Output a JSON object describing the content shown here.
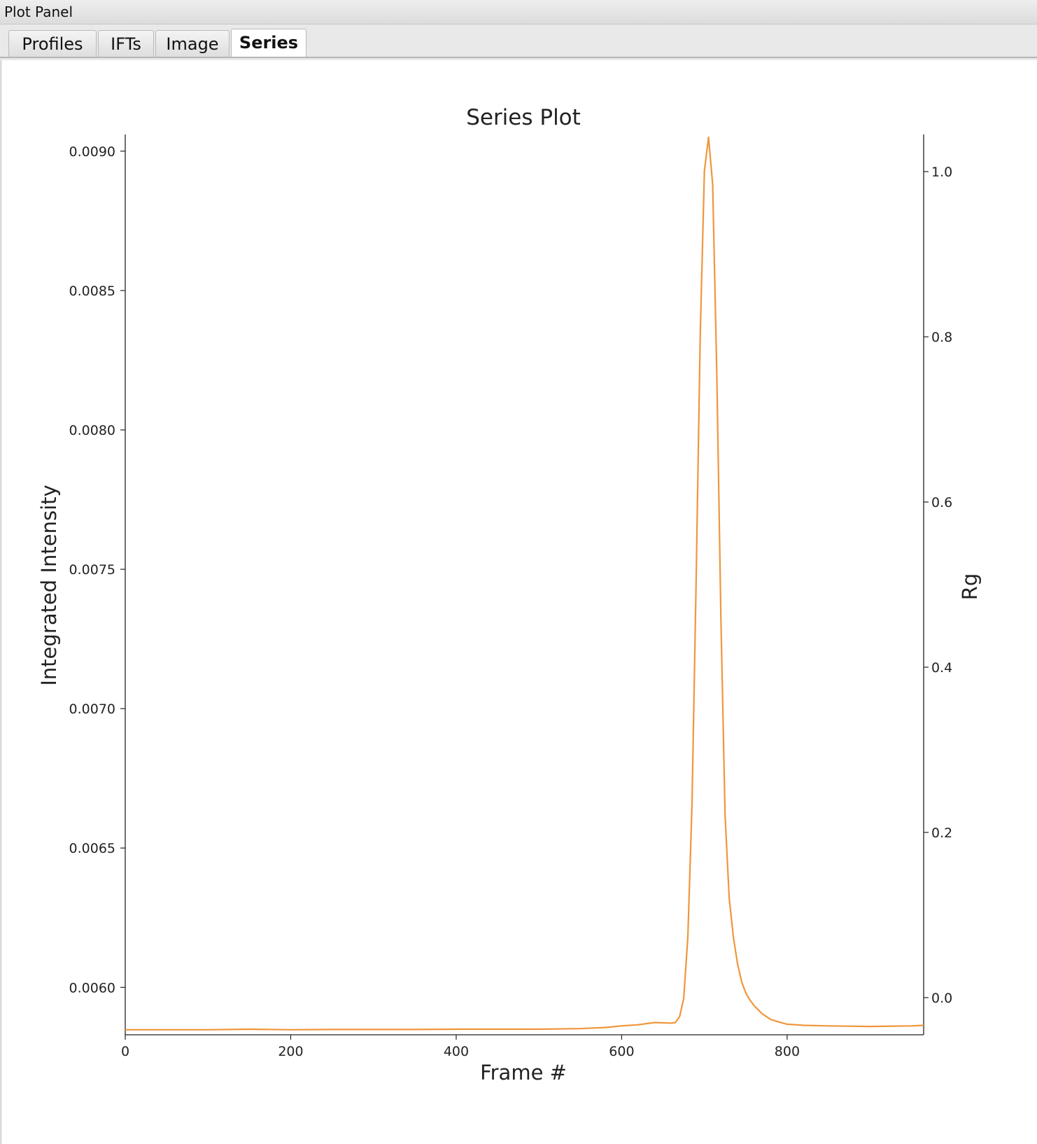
{
  "window": {
    "title": "Plot Panel"
  },
  "tabs": [
    {
      "label": "Profiles",
      "active": false
    },
    {
      "label": "IFTs",
      "active": false
    },
    {
      "label": "Image",
      "active": false
    },
    {
      "label": "Series",
      "active": true
    }
  ],
  "chart_data": {
    "type": "line",
    "title": "Series Plot",
    "xlabel": "Frame #",
    "ylabel": "Integrated Intensity",
    "y2label": "Rg",
    "xlim": [
      0,
      965
    ],
    "ylim": [
      0.00583,
      0.00906
    ],
    "y2lim": [
      -0.045,
      1.045
    ],
    "xticks": [
      "0",
      "200",
      "400",
      "600",
      "800"
    ],
    "yticks": [
      "0.0060",
      "0.0065",
      "0.0070",
      "0.0075",
      "0.0080",
      "0.0085",
      "0.0090"
    ],
    "y2ticks": [
      "0.0",
      "0.2",
      "0.4",
      "0.6",
      "0.8",
      "1.0"
    ],
    "grid": false,
    "line_color": "#f0963c",
    "series": [
      {
        "x": [
          0,
          50,
          100,
          150,
          200,
          250,
          300,
          350,
          400,
          450,
          500,
          550,
          580,
          600,
          620,
          640,
          660,
          665,
          670,
          675,
          680,
          685,
          690,
          695,
          700,
          705,
          710,
          715,
          720,
          725,
          730,
          735,
          740,
          745,
          750,
          755,
          760,
          770,
          780,
          790,
          800,
          820,
          850,
          900,
          950,
          965
        ],
        "y": [
          0.005848,
          0.005848,
          0.005848,
          0.00585,
          0.005848,
          0.005849,
          0.005849,
          0.005849,
          0.00585,
          0.00585,
          0.00585,
          0.005852,
          0.005856,
          0.005862,
          0.005866,
          0.005874,
          0.005872,
          0.005874,
          0.005895,
          0.00596,
          0.00618,
          0.00665,
          0.00745,
          0.00835,
          0.00893,
          0.00905,
          0.00888,
          0.0082,
          0.00732,
          0.00662,
          0.00632,
          0.00618,
          0.006085,
          0.00602,
          0.00598,
          0.005955,
          0.005935,
          0.005905,
          0.005885,
          0.005876,
          0.005868,
          0.005864,
          0.005862,
          0.00586,
          0.005862,
          0.005864
        ]
      }
    ]
  }
}
